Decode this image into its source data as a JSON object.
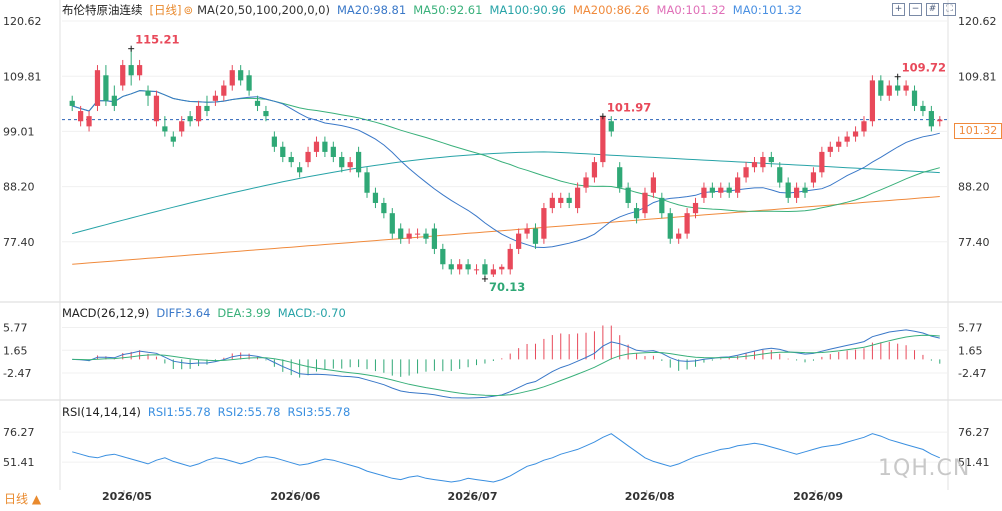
{
  "header": {
    "title": "布伦特原油连续",
    "period": "[日线]",
    "ma_label": "MA(20,50,100,200,0,0)",
    "ma20": "MA20:98.81",
    "ma50": "MA50:92.61",
    "ma100": "MA100:90.96",
    "ma200": "MA200:86.26",
    "ma0a": "MA0:101.32",
    "ma0b": "MA0:101.32"
  },
  "macd_header": {
    "label": "MACD(26,12,9)",
    "diff": "DIFF:3.64",
    "dea": "DEA:3.99",
    "macd": "MACD:-0.70"
  },
  "rsi_header": {
    "label": "RSI(14,14,14)",
    "rsi1": "RSI1:55.78",
    "rsi2": "RSI2:55.78",
    "rsi3": "RSI3:55.78"
  },
  "current_price": "101.32",
  "watermark": "1QH.CN",
  "period_button": "日线 ▲",
  "colors": {
    "up": "#e8495a",
    "down": "#2fa876",
    "ma20": "#3a78c8",
    "ma50": "#39b07a",
    "ma200": "#f08a3c",
    "current": "#2a62b8",
    "rsi": "#3a8fe0",
    "macd_diff": "#3a78c8",
    "macd_dea": "#39b07a"
  },
  "toolbar_icons": [
    "expand-icon",
    "shrink-icon",
    "grid-icon",
    "fullscreen-icon"
  ],
  "chart_data": [
    {
      "type": "candlestick",
      "title": "布伦特原油连续 [日线]",
      "x_labels": [
        "2026/05",
        "2026/06",
        "2026/07",
        "2026/08",
        "2026/09"
      ],
      "y_ticks": [
        120.62,
        109.81,
        99.01,
        88.2,
        77.4
      ],
      "ylim": [
        66,
        122
      ],
      "annotations": [
        {
          "text": "115.21",
          "value": 115.21
        },
        {
          "text": "101.97",
          "value": 101.97
        },
        {
          "text": "70.13",
          "value": 70.13
        },
        {
          "text": "109.72",
          "value": 109.72
        }
      ],
      "current_price": 101.32,
      "candles": [
        [
          105,
          104,
          106,
          103
        ],
        [
          101,
          103,
          104,
          100
        ],
        [
          100,
          102,
          103,
          99
        ],
        [
          104,
          111,
          112,
          103
        ],
        [
          110,
          105,
          112,
          104
        ],
        [
          106,
          104,
          108,
          103
        ],
        [
          108,
          112,
          113,
          107
        ],
        [
          112,
          110,
          115.21,
          108
        ],
        [
          110,
          112,
          113,
          109
        ],
        [
          107,
          106,
          108,
          104
        ],
        [
          101,
          106,
          107,
          100
        ],
        [
          100,
          99,
          102,
          98
        ],
        [
          98,
          97,
          99,
          96
        ],
        [
          99,
          101,
          102,
          98
        ],
        [
          102,
          101,
          103,
          100
        ],
        [
          101,
          104,
          105,
          100
        ],
        [
          104,
          103,
          106,
          102
        ],
        [
          105,
          106,
          107,
          104
        ],
        [
          106,
          108,
          109,
          105
        ],
        [
          108,
          111,
          112,
          107
        ],
        [
          111,
          109,
          112,
          108
        ],
        [
          110,
          107,
          111,
          106
        ],
        [
          105,
          104,
          106,
          103
        ],
        [
          103,
          102,
          104,
          101
        ],
        [
          98,
          96,
          99,
          95
        ],
        [
          96,
          94,
          97,
          93
        ],
        [
          94,
          93,
          95,
          92
        ],
        [
          92,
          91,
          93,
          90
        ],
        [
          93,
          95,
          96,
          92
        ],
        [
          95,
          97,
          98,
          94
        ],
        [
          97,
          95,
          98,
          94
        ],
        [
          96,
          94,
          97,
          93
        ],
        [
          94,
          92,
          95,
          91
        ],
        [
          92,
          93,
          94,
          91
        ],
        [
          95,
          91,
          96,
          90
        ],
        [
          91,
          87,
          92,
          86
        ],
        [
          87,
          85,
          88,
          84
        ],
        [
          85,
          83,
          86,
          82
        ],
        [
          83,
          79,
          84,
          78
        ],
        [
          80,
          78,
          81,
          77
        ],
        [
          78,
          79,
          80,
          77
        ],
        [
          79,
          79,
          80,
          78
        ],
        [
          79,
          78,
          80,
          77
        ],
        [
          80,
          76,
          81,
          75
        ],
        [
          76,
          73,
          77,
          72
        ],
        [
          73,
          72,
          74,
          71
        ],
        [
          72,
          73,
          74,
          71
        ],
        [
          73,
          72,
          74,
          71
        ],
        [
          72,
          72,
          73,
          71
        ],
        [
          73,
          71,
          74,
          70.13
        ],
        [
          71,
          72,
          73,
          70.5
        ],
        [
          72,
          72.5,
          73,
          71
        ],
        [
          72,
          76,
          77,
          71
        ],
        [
          76,
          79,
          80,
          75
        ],
        [
          79,
          80,
          81,
          78
        ],
        [
          80,
          77,
          81,
          76
        ],
        [
          78,
          84,
          85,
          77
        ],
        [
          84,
          86,
          87,
          83
        ],
        [
          85,
          86,
          87,
          84
        ],
        [
          86,
          85,
          87,
          84
        ],
        [
          84,
          88,
          89,
          83
        ],
        [
          88,
          90,
          91,
          87
        ],
        [
          90,
          93,
          94,
          89
        ],
        [
          93,
          101.97,
          101.97,
          92
        ],
        [
          101,
          99,
          102,
          98
        ],
        [
          92,
          88,
          93,
          87
        ],
        [
          88,
          85,
          89,
          84
        ],
        [
          84,
          82,
          85,
          81
        ],
        [
          83,
          87,
          88,
          82
        ],
        [
          87,
          90,
          91,
          86
        ],
        [
          86,
          83,
          87,
          82
        ],
        [
          83,
          78,
          84,
          77
        ],
        [
          78,
          79,
          80,
          77
        ],
        [
          79,
          83,
          84,
          78
        ],
        [
          83,
          85,
          86,
          82
        ],
        [
          86,
          88,
          89,
          85
        ],
        [
          88,
          87,
          89,
          86
        ],
        [
          87,
          88,
          89,
          86
        ],
        [
          88,
          87,
          89,
          86
        ],
        [
          87,
          90,
          91,
          86
        ],
        [
          90,
          92,
          93,
          89
        ],
        [
          92,
          93,
          94,
          91
        ],
        [
          92,
          94,
          95,
          91
        ],
        [
          94,
          93,
          95,
          92
        ],
        [
          92,
          89,
          93,
          88
        ],
        [
          89,
          86,
          90,
          85
        ],
        [
          86,
          88,
          89,
          85
        ],
        [
          88,
          87,
          89,
          86
        ],
        [
          89,
          91,
          92,
          88
        ],
        [
          91,
          95,
          96,
          90
        ],
        [
          95,
          96,
          97,
          94
        ],
        [
          96,
          97,
          98,
          95
        ],
        [
          97,
          98,
          99,
          96
        ],
        [
          98,
          99,
          100,
          97
        ],
        [
          99,
          101,
          102,
          98
        ],
        [
          101,
          109,
          110,
          100
        ],
        [
          109,
          106,
          110,
          105
        ],
        [
          106,
          108,
          109,
          105
        ],
        [
          108,
          107,
          109.72,
          106
        ],
        [
          107,
          108,
          109,
          106
        ],
        [
          107,
          104,
          108,
          103
        ],
        [
          104,
          103,
          105,
          102
        ],
        [
          103,
          100,
          104,
          99
        ],
        [
          101,
          101.32,
          102,
          100
        ]
      ]
    },
    {
      "type": "macd_histogram",
      "title": "MACD(26,12,9)",
      "y_ticks": [
        5.77,
        1.65,
        -2.47
      ],
      "ylim": [
        -7,
        7.5
      ],
      "diff_last": 3.64,
      "dea_last": 3.99,
      "macd_last": -0.7
    },
    {
      "type": "line",
      "title": "RSI(14,14,14)",
      "y_ticks": [
        76.27,
        51.41
      ],
      "ylim": [
        30,
        88
      ],
      "rsi": [
        60,
        58,
        56,
        55,
        57,
        58,
        56,
        54,
        52,
        50,
        53,
        55,
        52,
        50,
        48,
        50,
        53,
        55,
        54,
        52,
        50,
        52,
        55,
        56,
        55,
        53,
        51,
        49,
        50,
        52,
        54,
        53,
        51,
        49,
        47,
        44,
        42,
        40,
        38,
        37,
        39,
        40,
        38,
        37,
        36,
        35,
        36,
        38,
        37,
        36,
        35,
        37,
        40,
        44,
        48,
        50,
        53,
        55,
        58,
        60,
        62,
        65,
        68,
        72,
        75,
        70,
        65,
        60,
        55,
        52,
        50,
        48,
        50,
        53,
        56,
        58,
        60,
        62,
        63,
        65,
        66,
        67,
        66,
        64,
        62,
        60,
        58,
        60,
        62,
        64,
        65,
        66,
        68,
        70,
        72,
        75,
        73,
        70,
        68,
        66,
        64,
        62,
        58,
        55,
        56
      ]
    }
  ]
}
